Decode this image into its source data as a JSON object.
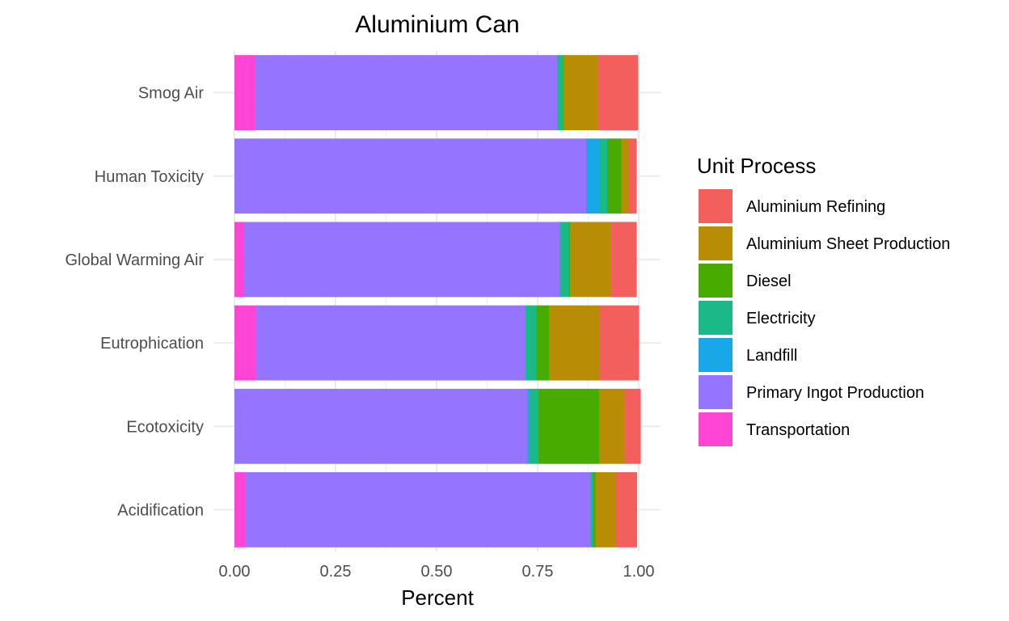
{
  "chart_data": {
    "type": "bar",
    "orientation": "horizontal",
    "stacked": true,
    "title": "Aluminium Can",
    "xlabel": "Percent",
    "ylabel": "",
    "xlim": [
      0,
      1
    ],
    "x_ticks": [
      0,
      0.25,
      0.5,
      0.75,
      1
    ],
    "x_tick_labels": [
      "0.00",
      "0.25",
      "0.50",
      "0.75",
      "1.00"
    ],
    "grid": true,
    "legend_position": "right",
    "legend_title": "Unit Process",
    "categories": [
      "Smog Air",
      "Human Toxicity",
      "Global Warming Air",
      "Eutrophication",
      "Ecotoxicity",
      "Acidification"
    ],
    "series": [
      {
        "name": "Transportation",
        "color": "#FF45D3",
        "values": [
          0.05,
          0.0,
          0.022,
          0.053,
          0.0,
          0.028
        ]
      },
      {
        "name": "Primary Ingot Production",
        "color": "#9575FF",
        "values": [
          0.748,
          0.87,
          0.783,
          0.667,
          0.725,
          0.853
        ]
      },
      {
        "name": "Landfill",
        "color": "#18A8E8",
        "values": [
          0.0,
          0.032,
          0.0,
          0.0,
          0.004,
          0.0
        ]
      },
      {
        "name": "Electricity",
        "color": "#1BB988",
        "values": [
          0.014,
          0.02,
          0.022,
          0.027,
          0.023,
          0.006
        ]
      },
      {
        "name": "Diesel",
        "color": "#47AB00",
        "values": [
          0.002,
          0.035,
          0.003,
          0.031,
          0.15,
          0.006
        ]
      },
      {
        "name": "Aluminium Sheet Production",
        "color": "#B88C05",
        "values": [
          0.086,
          0.018,
          0.1,
          0.125,
          0.063,
          0.051
        ]
      },
      {
        "name": "Aluminium Refining",
        "color": "#F35F5C",
        "values": [
          0.098,
          0.02,
          0.065,
          0.098,
          0.04,
          0.052
        ]
      }
    ],
    "legend_order": [
      "Aluminium Refining",
      "Aluminium Sheet Production",
      "Diesel",
      "Electricity",
      "Landfill",
      "Primary Ingot Production",
      "Transportation"
    ]
  }
}
